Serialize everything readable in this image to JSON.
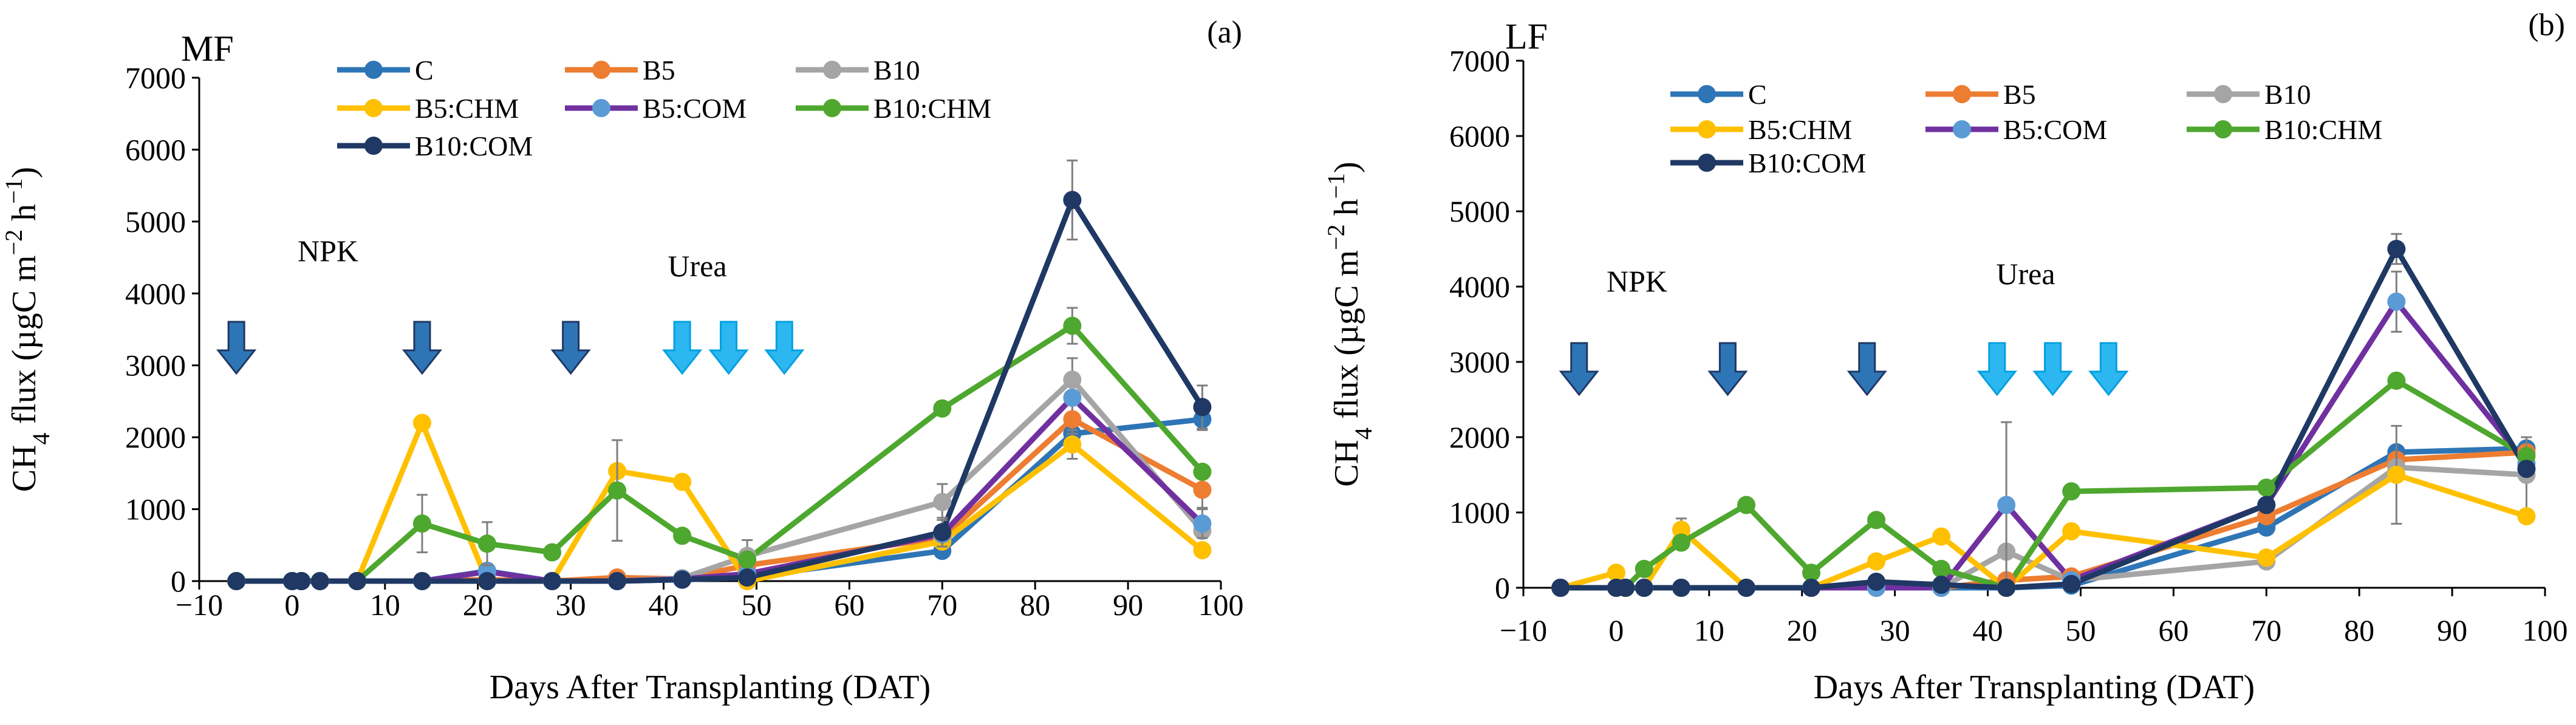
{
  "chart_data": [
    {
      "type": "line",
      "panel": "(a)",
      "title": "MF",
      "xlabel": "Days After Transplanting (DAT)",
      "ylabel": "CH4 flux (µgC m−2 h−1)",
      "xlim": [
        -10,
        100
      ],
      "ylim": [
        0,
        7000
      ],
      "xticks": [
        -10,
        0,
        10,
        20,
        30,
        40,
        50,
        60,
        70,
        80,
        90,
        100
      ],
      "yticks": [
        0,
        1000,
        2000,
        3000,
        4000,
        5000,
        6000,
        7000
      ],
      "legend": [
        "C",
        "B5",
        "B10",
        "B5:CHM",
        "B5:COM",
        "B10:CHM",
        "B10:COM"
      ],
      "annotations": {
        "npk": {
          "label": "NPK",
          "arrows_dat": [
            -6,
            14,
            30
          ]
        },
        "urea": {
          "label": "Urea",
          "arrows_dat": [
            42,
            47,
            53
          ]
        }
      },
      "series": [
        {
          "name": "C",
          "color": "#2E75B6",
          "marker": "#2E75B6",
          "points": [
            [
              -6,
              0
            ],
            [
              0,
              0
            ],
            [
              1,
              0
            ],
            [
              3,
              0
            ],
            [
              7,
              0
            ],
            [
              14,
              0
            ],
            [
              21,
              140
            ],
            [
              28,
              0
            ],
            [
              35,
              0
            ],
            [
              42,
              20
            ],
            [
              49,
              50
            ],
            [
              70,
              420
            ],
            [
              84,
              2050
            ],
            [
              98,
              2250
            ]
          ],
          "errors": [
            [
              98,
              150
            ]
          ]
        },
        {
          "name": "B5",
          "color": "#ED7D31",
          "marker": "#ED7D31",
          "points": [
            [
              -6,
              0
            ],
            [
              0,
              0
            ],
            [
              1,
              0
            ],
            [
              3,
              0
            ],
            [
              7,
              0
            ],
            [
              14,
              0
            ],
            [
              21,
              20
            ],
            [
              28,
              0
            ],
            [
              35,
              50
            ],
            [
              42,
              30
            ],
            [
              49,
              220
            ],
            [
              70,
              600
            ],
            [
              84,
              2250
            ],
            [
              98,
              1270
            ]
          ],
          "errors": [
            [
              84,
              200
            ],
            [
              98,
              250
            ]
          ]
        },
        {
          "name": "B10",
          "color": "#A5A5A5",
          "marker": "#A5A5A5",
          "points": [
            [
              -6,
              0
            ],
            [
              0,
              0
            ],
            [
              1,
              0
            ],
            [
              3,
              0
            ],
            [
              7,
              0
            ],
            [
              14,
              0
            ],
            [
              21,
              0
            ],
            [
              28,
              0
            ],
            [
              35,
              0
            ],
            [
              42,
              40
            ],
            [
              49,
              350
            ],
            [
              70,
              1100
            ],
            [
              84,
              2800
            ],
            [
              98,
              700
            ]
          ],
          "errors": [
            [
              49,
              220
            ],
            [
              70,
              250
            ],
            [
              84,
              300
            ]
          ]
        },
        {
          "name": "B5:CHM",
          "color": "#FFC000",
          "marker": "#FFC000",
          "points": [
            [
              -6,
              0
            ],
            [
              0,
              0
            ],
            [
              1,
              0
            ],
            [
              3,
              0
            ],
            [
              7,
              0
            ],
            [
              14,
              2200
            ],
            [
              21,
              0
            ],
            [
              28,
              0
            ],
            [
              35,
              1530
            ],
            [
              42,
              1380
            ],
            [
              49,
              0
            ],
            [
              70,
              550
            ],
            [
              84,
              1900
            ],
            [
              98,
              430
            ]
          ],
          "errors": [
            [
              84,
              200
            ]
          ]
        },
        {
          "name": "B5:COM",
          "color": "#7030A0",
          "marker": "#5B9BD5",
          "points": [
            [
              -6,
              0
            ],
            [
              0,
              0
            ],
            [
              1,
              0
            ],
            [
              3,
              0
            ],
            [
              7,
              0
            ],
            [
              14,
              0
            ],
            [
              21,
              130
            ],
            [
              28,
              0
            ],
            [
              35,
              0
            ],
            [
              42,
              30
            ],
            [
              49,
              100
            ],
            [
              70,
              650
            ],
            [
              84,
              2550
            ],
            [
              98,
              800
            ]
          ],
          "errors": [
            [
              98,
              200
            ]
          ]
        },
        {
          "name": "B10:CHM",
          "color": "#4EA72E",
          "marker": "#4EA72E",
          "points": [
            [
              -6,
              0
            ],
            [
              0,
              0
            ],
            [
              1,
              0
            ],
            [
              3,
              0
            ],
            [
              7,
              0
            ],
            [
              14,
              800
            ],
            [
              21,
              520
            ],
            [
              28,
              400
            ],
            [
              35,
              1260
            ],
            [
              42,
              630
            ],
            [
              49,
              300
            ],
            [
              70,
              2400
            ],
            [
              84,
              3550
            ],
            [
              98,
              1520
            ]
          ],
          "errors": [
            [
              14,
              400
            ],
            [
              21,
              300
            ],
            [
              35,
              700
            ],
            [
              84,
              250
            ]
          ]
        },
        {
          "name": "B10:COM",
          "color": "#1F3864",
          "marker": "#1F3864",
          "points": [
            [
              -6,
              0
            ],
            [
              0,
              0
            ],
            [
              1,
              0
            ],
            [
              3,
              0
            ],
            [
              7,
              0
            ],
            [
              14,
              0
            ],
            [
              21,
              0
            ],
            [
              28,
              0
            ],
            [
              35,
              0
            ],
            [
              42,
              20
            ],
            [
              49,
              50
            ],
            [
              70,
              680
            ],
            [
              84,
              5300
            ],
            [
              98,
              2420
            ]
          ],
          "errors": [
            [
              70,
              200
            ],
            [
              84,
              550
            ],
            [
              98,
              300
            ]
          ]
        }
      ]
    },
    {
      "type": "line",
      "panel": "(b)",
      "title": "LF",
      "xlabel": "Days After Transplanting (DAT)",
      "ylabel": "CH4 flux (µgC m−2 h−1)",
      "xlim": [
        -10,
        100
      ],
      "ylim": [
        0,
        7000
      ],
      "xticks": [
        -10,
        0,
        10,
        20,
        30,
        40,
        50,
        60,
        70,
        80,
        90,
        100
      ],
      "yticks": [
        0,
        1000,
        2000,
        3000,
        4000,
        5000,
        6000,
        7000
      ],
      "legend": [
        "C",
        "B5",
        "B10",
        "B5:CHM",
        "B5:COM",
        "B10:CHM",
        "B10:COM"
      ],
      "annotations": {
        "npk": {
          "label": "NPK",
          "arrows_dat": [
            -4,
            12,
            27
          ]
        },
        "urea": {
          "label": "Urea",
          "arrows_dat": [
            41,
            47,
            53
          ]
        }
      },
      "series": [
        {
          "name": "C",
          "color": "#2E75B6",
          "marker": "#2E75B6",
          "points": [
            [
              -6,
              0
            ],
            [
              0,
              0
            ],
            [
              1,
              0
            ],
            [
              3,
              0
            ],
            [
              7,
              0
            ],
            [
              14,
              0
            ],
            [
              21,
              0
            ],
            [
              28,
              0
            ],
            [
              35,
              0
            ],
            [
              42,
              0
            ],
            [
              49,
              30
            ],
            [
              70,
              800
            ],
            [
              84,
              1800
            ],
            [
              98,
              1850
            ]
          ],
          "errors": []
        },
        {
          "name": "B5",
          "color": "#ED7D31",
          "marker": "#ED7D31",
          "points": [
            [
              -6,
              0
            ],
            [
              0,
              0
            ],
            [
              1,
              0
            ],
            [
              3,
              0
            ],
            [
              7,
              0
            ],
            [
              14,
              0
            ],
            [
              21,
              0
            ],
            [
              28,
              0
            ],
            [
              35,
              0
            ],
            [
              42,
              100
            ],
            [
              49,
              150
            ],
            [
              70,
              950
            ],
            [
              84,
              1700
            ],
            [
              98,
              1800
            ]
          ],
          "errors": []
        },
        {
          "name": "B10",
          "color": "#A5A5A5",
          "marker": "#A5A5A5",
          "points": [
            [
              -6,
              0
            ],
            [
              0,
              0
            ],
            [
              1,
              0
            ],
            [
              3,
              0
            ],
            [
              7,
              0
            ],
            [
              14,
              0
            ],
            [
              21,
              0
            ],
            [
              28,
              0
            ],
            [
              35,
              0
            ],
            [
              42,
              480
            ],
            [
              49,
              100
            ],
            [
              70,
              350
            ],
            [
              84,
              1600
            ],
            [
              98,
              1500
            ]
          ],
          "errors": [
            [
              98,
              500
            ]
          ]
        },
        {
          "name": "B5:CHM",
          "color": "#FFC000",
          "marker": "#FFC000",
          "points": [
            [
              -6,
              0
            ],
            [
              0,
              200
            ],
            [
              1,
              0
            ],
            [
              3,
              0
            ],
            [
              7,
              770
            ],
            [
              14,
              0
            ],
            [
              21,
              0
            ],
            [
              28,
              350
            ],
            [
              35,
              680
            ],
            [
              42,
              0
            ],
            [
              49,
              750
            ],
            [
              70,
              400
            ],
            [
              84,
              1500
            ],
            [
              98,
              950
            ]
          ],
          "errors": [
            [
              7,
              150
            ],
            [
              84,
              650
            ]
          ]
        },
        {
          "name": "B5:COM",
          "color": "#7030A0",
          "marker": "#5B9BD5",
          "points": [
            [
              -6,
              0
            ],
            [
              0,
              0
            ],
            [
              1,
              0
            ],
            [
              3,
              0
            ],
            [
              7,
              0
            ],
            [
              14,
              0
            ],
            [
              21,
              0
            ],
            [
              28,
              0
            ],
            [
              35,
              0
            ],
            [
              42,
              1100
            ],
            [
              49,
              100
            ],
            [
              70,
              1100
            ],
            [
              84,
              3800
            ],
            [
              98,
              1650
            ]
          ],
          "errors": [
            [
              42,
              1100
            ],
            [
              84,
              400
            ]
          ]
        },
        {
          "name": "B10:CHM",
          "color": "#4EA72E",
          "marker": "#4EA72E",
          "points": [
            [
              -6,
              0
            ],
            [
              0,
              0
            ],
            [
              1,
              0
            ],
            [
              3,
              250
            ],
            [
              7,
              600
            ],
            [
              14,
              1100
            ],
            [
              21,
              200
            ],
            [
              28,
              900
            ],
            [
              35,
              250
            ],
            [
              42,
              0
            ],
            [
              49,
              1280
            ],
            [
              70,
              1330
            ],
            [
              84,
              2750
            ],
            [
              98,
              1750
            ]
          ],
          "errors": []
        },
        {
          "name": "B10:COM",
          "color": "#1F3864",
          "marker": "#1F3864",
          "points": [
            [
              -6,
              0
            ],
            [
              0,
              0
            ],
            [
              1,
              0
            ],
            [
              3,
              0
            ],
            [
              7,
              0
            ],
            [
              14,
              0
            ],
            [
              21,
              0
            ],
            [
              28,
              80
            ],
            [
              35,
              40
            ],
            [
              42,
              0
            ],
            [
              49,
              50
            ],
            [
              70,
              1100
            ],
            [
              84,
              4500
            ],
            [
              98,
              1580
            ]
          ],
          "errors": [
            [
              84,
              200
            ]
          ]
        }
      ]
    }
  ]
}
